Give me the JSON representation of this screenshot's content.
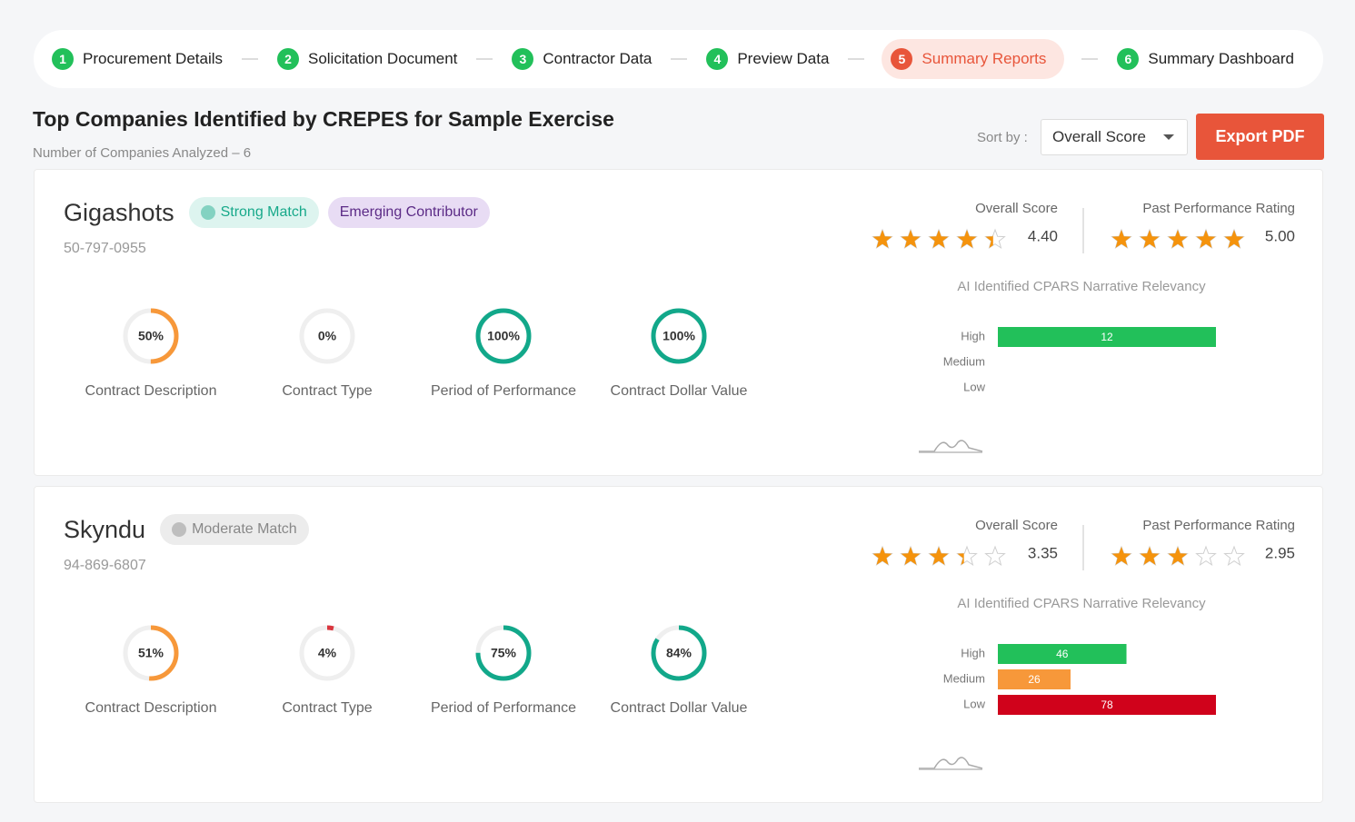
{
  "steps": [
    {
      "number": 1,
      "label": "Procurement Details"
    },
    {
      "number": 2,
      "label": "Solicitation Document"
    },
    {
      "number": 3,
      "label": "Contractor Data"
    },
    {
      "number": 4,
      "label": "Preview Data"
    },
    {
      "number": 5,
      "label": "Summary Reports",
      "active": true
    },
    {
      "number": 6,
      "label": "Summary Dashboard"
    }
  ],
  "header": {
    "title": "Top Companies Identified by CREPES for Sample Exercise",
    "subtitle": "Number of Companies Analyzed – 6"
  },
  "sort": {
    "label": "Sort by :",
    "value": "Overall Score"
  },
  "export_button": "Export PDF",
  "companies": [
    {
      "name": "Gigashots",
      "id": "50-797-0955",
      "tags": [
        {
          "text": "Strong Match",
          "color": "#17a98a",
          "background": "#ddf4ef",
          "icon": "smile"
        },
        {
          "text": "Emerging Contributor",
          "color": "#5b2a86",
          "background": "#e8dcf4"
        }
      ],
      "overall_score": {
        "label": "Overall Score",
        "value": 4.4,
        "value_label": "4.40"
      },
      "past_performance": {
        "label": "Past Performance Rating",
        "value": 5,
        "value_label": "5.00"
      },
      "metrics": [
        {
          "label": "Contract Description",
          "value": 50,
          "value_label": "50%",
          "color": "#f7983a"
        },
        {
          "label": "Contract Type",
          "value": 0,
          "value_label": "0%",
          "color": "#d0021b"
        },
        {
          "label": "Period of Performance",
          "value": 100,
          "value_label": "100%",
          "color": "#12a88a"
        },
        {
          "label": "Contract Dollar Value",
          "value": 100,
          "value_label": "100%",
          "color": "#12a88a"
        }
      ],
      "relevancy": {
        "title": "AI Identified CPARS Narrative Relevancy",
        "categories": [
          "High",
          "Medium",
          "Low"
        ],
        "values": [
          12,
          null,
          null
        ],
        "colors": [
          "#22c05a",
          "#f7983a",
          "#d0021b"
        ]
      }
    },
    {
      "name": "Skyndu",
      "id": "94-869-6807",
      "tags": [
        {
          "text": "Moderate Match",
          "color": "#888888",
          "background": "#ececec",
          "icon": "neutral"
        }
      ],
      "overall_score": {
        "label": "Overall Score",
        "value": 3.35,
        "value_label": "3.35"
      },
      "past_performance": {
        "label": "Past Performance Rating",
        "value": 2.95,
        "value_label": "2.95"
      },
      "metrics": [
        {
          "label": "Contract Description",
          "value": 51,
          "value_label": "51%",
          "color": "#f7983a"
        },
        {
          "label": "Contract Type",
          "value": 4,
          "value_label": "4%",
          "color": "#d9363e"
        },
        {
          "label": "Period of Performance",
          "value": 75,
          "value_label": "75%",
          "color": "#12a88a"
        },
        {
          "label": "Contract Dollar Value",
          "value": 84,
          "value_label": "84%",
          "color": "#12a88a"
        }
      ],
      "relevancy": {
        "title": "AI Identified CPARS Narrative Relevancy",
        "categories": [
          "High",
          "Medium",
          "Low"
        ],
        "values": [
          46,
          26,
          78
        ],
        "colors": [
          "#22c05a",
          "#f7983a",
          "#d0021b"
        ]
      }
    }
  ]
}
